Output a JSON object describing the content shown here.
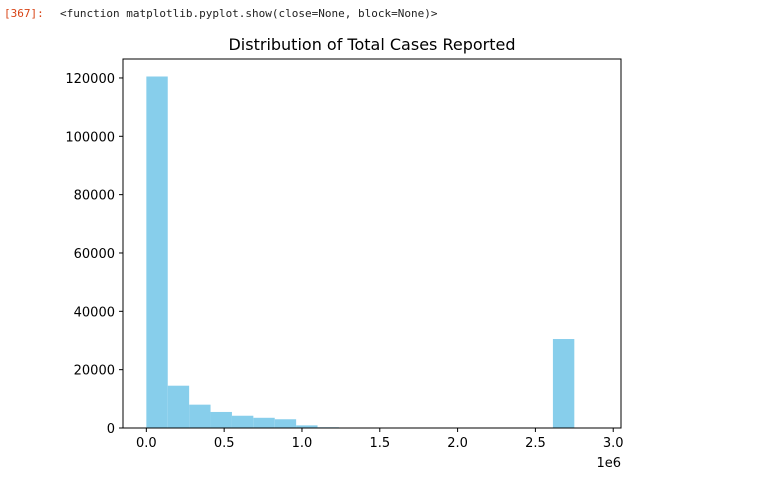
{
  "cell": {
    "prompt": "[367]:",
    "output_text": "<function matplotlib.pyplot.show(close=None, block=None)>"
  },
  "colors": {
    "bar": "#87ceeb",
    "prompt": "#d84315",
    "axes": "#000000"
  },
  "chart_data": {
    "type": "bar",
    "title": "Distribution of Total Cases Reported",
    "xlabel": "",
    "ylabel": "",
    "x_offset_label": "1e6",
    "xlim": [
      -0.15,
      3.05
    ],
    "ylim": [
      0,
      126500
    ],
    "x_ticks": [
      0.0,
      0.5,
      1.0,
      1.5,
      2.0,
      2.5,
      3.0
    ],
    "x_tick_labels": [
      "0.0",
      "0.5",
      "1.0",
      "1.5",
      "2.0",
      "2.5",
      "3.0"
    ],
    "y_ticks": [
      0,
      20000,
      40000,
      60000,
      80000,
      100000,
      120000
    ],
    "y_tick_labels": [
      "0",
      "20000",
      "40000",
      "60000",
      "80000",
      "100000",
      "120000"
    ],
    "bin_start": 0.0,
    "bin_width": 0.1375,
    "counts": [
      120500,
      14500,
      8000,
      5500,
      4200,
      3500,
      3000,
      900,
      250,
      150,
      100,
      80,
      60,
      50,
      40,
      30,
      20,
      10,
      10,
      30500
    ],
    "grid": false
  }
}
